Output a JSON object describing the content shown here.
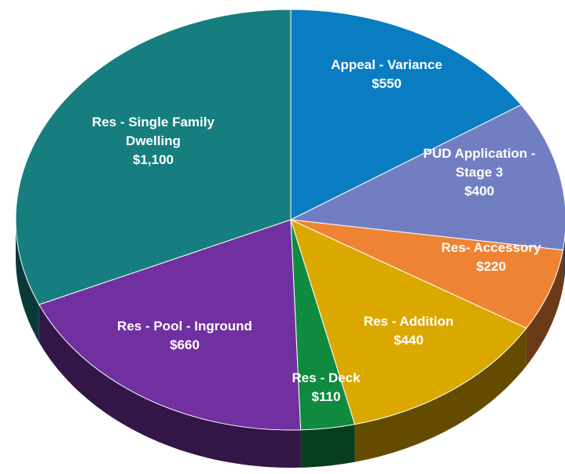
{
  "chart_data": {
    "type": "pie",
    "categories": [
      "Appeal - Variance",
      "PUD Application - Stage 3",
      "Res- Accessory",
      "Res - Addition",
      "Res - Deck",
      "Res - Pool - Inground",
      "Res - Single Family Dwelling"
    ],
    "values": [
      550,
      400,
      220,
      440,
      110,
      660,
      1100
    ],
    "value_labels": [
      "$550",
      "$400",
      "$220",
      "$440",
      "$110",
      "$660",
      "$1,100"
    ],
    "colors": [
      "#0a7dc2",
      "#717fc2",
      "#ee8433",
      "#dba800",
      "#0f8a3f",
      "#7030a0",
      "#167e7e"
    ]
  }
}
